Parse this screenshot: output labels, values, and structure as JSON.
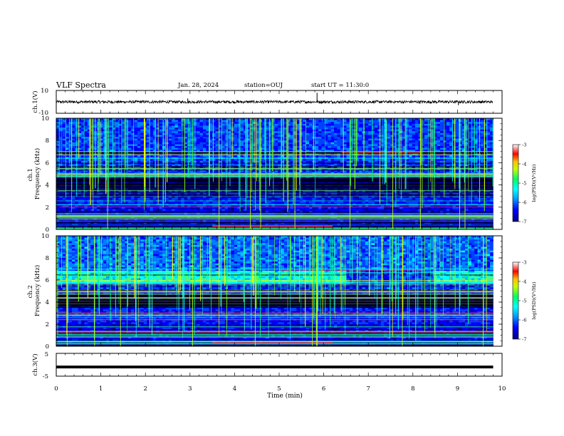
{
  "header": {
    "title": "VLF Spectra",
    "date": "Jan. 28, 2024",
    "station": "station=OUJ",
    "start_ut": "start UT =  11:30:0"
  },
  "colors": {
    "colormap": [
      "#000080",
      "#0000ff",
      "#00a0ff",
      "#00ffff",
      "#00ff80",
      "#80ff00",
      "#ffff00",
      "#ff8000",
      "#ff0000",
      "#ffffff"
    ]
  },
  "chart_data": [
    {
      "type": "line",
      "panel": "ch1-waveform",
      "ylabel": "ch.1(V)",
      "ylim": [
        -10,
        10
      ],
      "yticks": [
        "10",
        "-10"
      ],
      "xlim": [
        0,
        10
      ],
      "series": [
        {
          "mean": 0,
          "amplitude": 1.2
        }
      ]
    },
    {
      "type": "heatmap",
      "panel": "ch1-spectrogram",
      "ylabel": "ch.1 Frequency (kHz)",
      "ylim": [
        0,
        10
      ],
      "yticks": [
        "0",
        "2",
        "4",
        "6",
        "8",
        "10"
      ],
      "xlim": [
        0,
        10
      ],
      "data_end_min": 9.8,
      "colorbar": {
        "label": "log(PSD)(V²/Hz)",
        "range": [
          -7,
          -3
        ],
        "ticks": [
          "-3",
          "-4",
          "-5",
          "-6",
          "-7"
        ]
      }
    },
    {
      "type": "heatmap",
      "panel": "ch2-spectrogram",
      "ylabel": "ch.2 Frequency (kHz)",
      "ylim": [
        0,
        10
      ],
      "yticks": [
        "0",
        "2",
        "4",
        "6",
        "8",
        "10"
      ],
      "xlim": [
        0,
        10
      ],
      "data_end_min": 9.8,
      "colorbar": {
        "label": "log(PSD)(V²/Hz)",
        "range": [
          -7,
          -3
        ],
        "ticks": [
          "-3",
          "-4",
          "-5",
          "-6",
          "-7"
        ]
      }
    },
    {
      "type": "line",
      "panel": "ch3-waveform",
      "ylabel": "ch.3(V)",
      "ylim": [
        -5,
        5
      ],
      "yticks": [
        "5",
        "-5"
      ],
      "xlim": [
        0,
        10
      ],
      "series": [
        {
          "mean": -1,
          "amplitude": 0.3
        }
      ]
    }
  ],
  "xaxis": {
    "label": "Time (min)",
    "ticks": [
      "0",
      "1",
      "2",
      "3",
      "4",
      "5",
      "6",
      "7",
      "8",
      "9",
      "10"
    ]
  }
}
